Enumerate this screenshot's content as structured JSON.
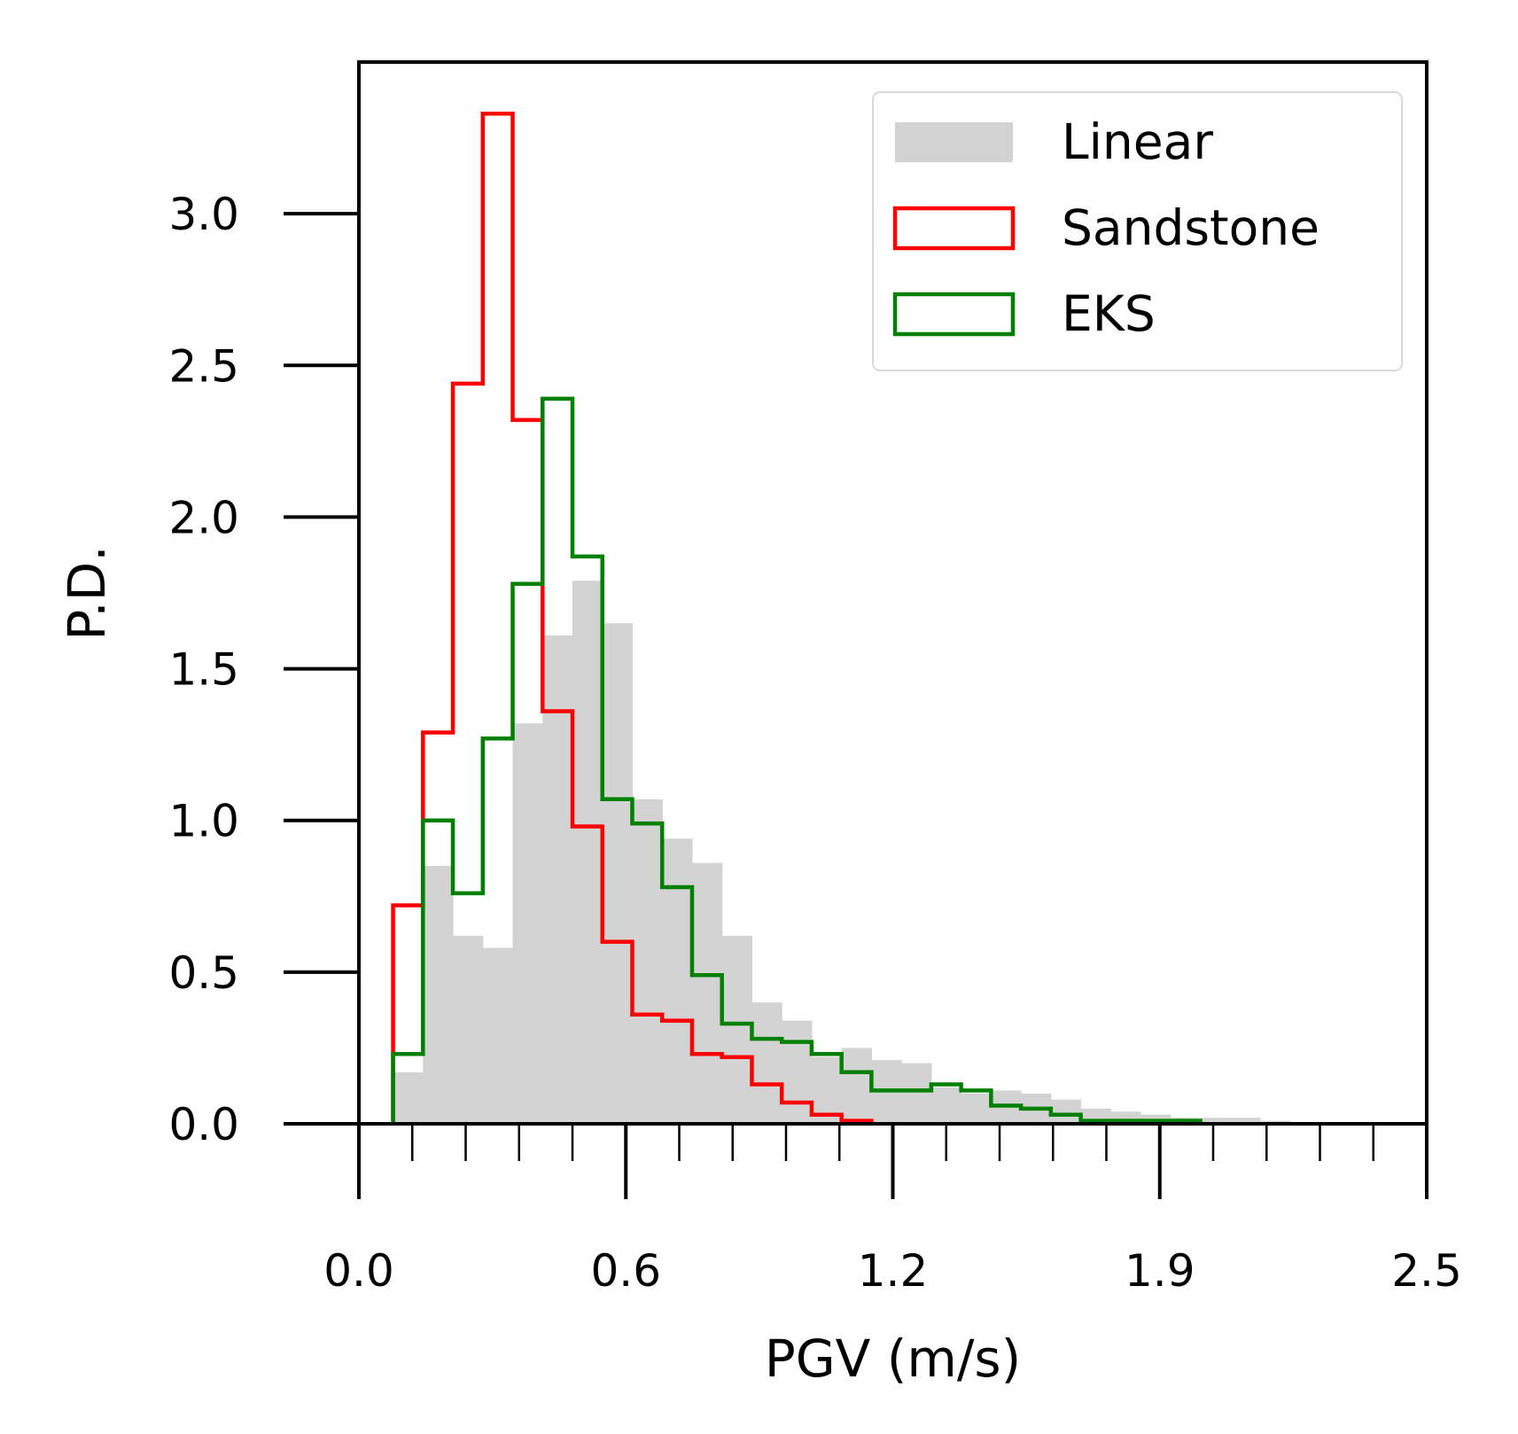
{
  "chart_data": {
    "type": "histogram",
    "xlabel": "PGV (m/s)",
    "ylabel": "P.D.",
    "xlim": [
      0.0,
      2.5
    ],
    "ylim": [
      0.0,
      3.5
    ],
    "x_major_ticks": [
      0.0,
      0.625,
      1.25,
      1.875,
      2.5
    ],
    "x_major_tick_labels": [
      "0.0",
      "0.6",
      "1.2",
      "1.9",
      "2.5"
    ],
    "x_minor_ticks": [
      0.125,
      0.25,
      0.375,
      0.5,
      0.75,
      0.875,
      1.0,
      1.125,
      1.375,
      1.5,
      1.625,
      1.75,
      2.0,
      2.125,
      2.25,
      2.375
    ],
    "y_ticks": [
      0.0,
      0.5,
      1.0,
      1.5,
      2.0,
      2.5,
      3.0
    ],
    "y_tick_labels": [
      "0.0",
      "0.5",
      "1.0",
      "1.5",
      "2.0",
      "2.5",
      "3.0"
    ],
    "legend_position": "top-right",
    "grid": false,
    "series": [
      {
        "name": "Linear",
        "style": "filled",
        "color": "#d3d3d3",
        "bin_edges": [
          0.08,
          0.15,
          0.22,
          0.29,
          0.36,
          0.43,
          0.5,
          0.57,
          0.64,
          0.71,
          0.78,
          0.85,
          0.92,
          0.99,
          1.06,
          1.13,
          1.2,
          1.27,
          1.34,
          1.41,
          1.48,
          1.55,
          1.62,
          1.69,
          1.76,
          1.83,
          1.9,
          1.97,
          2.04,
          2.11,
          2.18
        ],
        "values": [
          0.17,
          0.85,
          0.62,
          0.58,
          1.32,
          1.61,
          1.79,
          1.65,
          1.07,
          0.94,
          0.86,
          0.62,
          0.4,
          0.34,
          0.22,
          0.25,
          0.21,
          0.2,
          0.12,
          0.1,
          0.11,
          0.1,
          0.08,
          0.05,
          0.04,
          0.03,
          0.02,
          0.02,
          0.02,
          0.01
        ]
      },
      {
        "name": "Sandstone",
        "style": "step",
        "color": "#ff0000",
        "bin_edges": [
          0.08,
          0.15,
          0.22,
          0.29,
          0.36,
          0.43,
          0.5,
          0.57,
          0.64,
          0.71,
          0.78,
          0.85,
          0.92,
          0.99,
          1.06,
          1.13,
          1.2
        ],
        "values": [
          0.72,
          1.29,
          2.44,
          3.33,
          2.32,
          1.36,
          0.98,
          0.6,
          0.36,
          0.34,
          0.23,
          0.22,
          0.13,
          0.07,
          0.03,
          0.01
        ]
      },
      {
        "name": "EKS",
        "style": "step",
        "color": "#008000",
        "bin_edges": [
          0.08,
          0.15,
          0.22,
          0.29,
          0.36,
          0.43,
          0.5,
          0.57,
          0.64,
          0.71,
          0.78,
          0.85,
          0.92,
          0.99,
          1.06,
          1.13,
          1.2,
          1.27,
          1.34,
          1.41,
          1.48,
          1.55,
          1.62,
          1.69,
          1.76,
          1.83,
          1.9,
          1.97
        ],
        "values": [
          0.23,
          1.0,
          0.76,
          1.27,
          1.78,
          2.39,
          1.87,
          1.07,
          0.99,
          0.78,
          0.49,
          0.33,
          0.28,
          0.27,
          0.23,
          0.17,
          0.11,
          0.11,
          0.13,
          0.11,
          0.06,
          0.05,
          0.03,
          0.01,
          0.01,
          0.01,
          0.01
        ]
      }
    ]
  }
}
